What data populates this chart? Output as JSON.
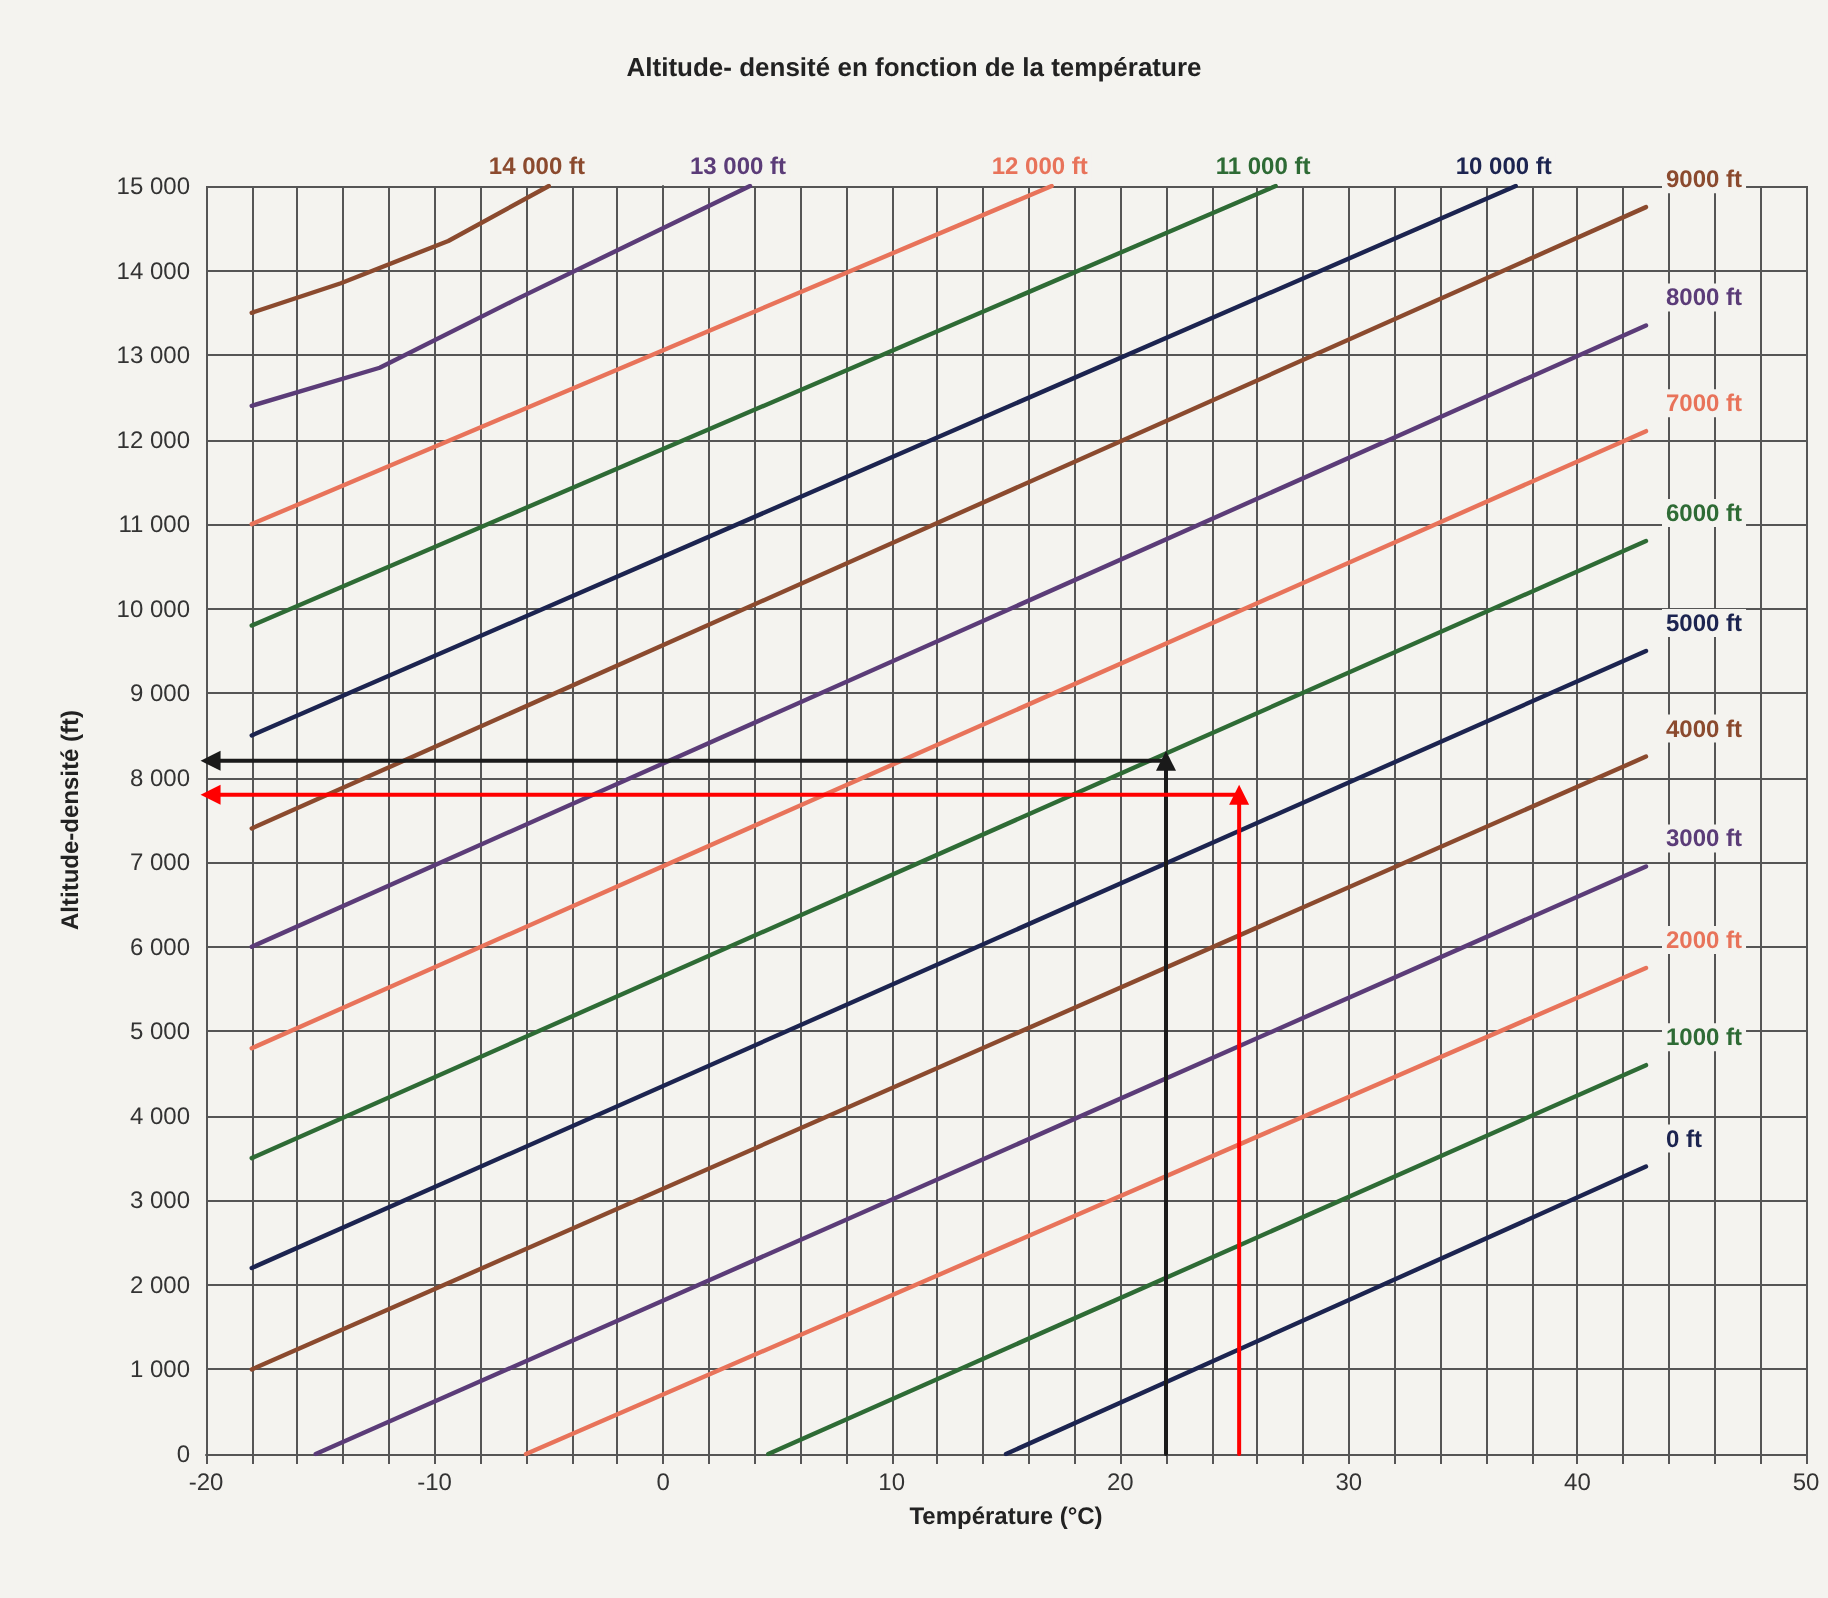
{
  "chart_data": {
    "type": "line",
    "title": "Altitude- densité en fonction de la température",
    "xlabel": "Température (°C)",
    "ylabel": "Altitude-densité (ft)",
    "xlim": [
      -20,
      50
    ],
    "xticks": [
      -20,
      {
        "value": -18,
        "label": null
      },
      {
        "value": -16,
        "label": null
      },
      {
        "value": -14,
        "label": null
      },
      {
        "value": -12,
        "label": null
      },
      -10,
      {
        "value": -8,
        "label": null
      },
      {
        "value": -6,
        "label": null
      },
      {
        "value": -4,
        "label": null
      },
      {
        "value": -2,
        "label": null
      },
      0,
      {
        "value": 2,
        "label": null
      },
      {
        "value": 4,
        "label": null
      },
      {
        "value": 6,
        "label": null
      },
      {
        "value": 8,
        "label": null
      },
      10,
      {
        "value": 12,
        "label": null
      },
      {
        "value": 14,
        "label": null
      },
      {
        "value": 16,
        "label": null
      },
      {
        "value": 18,
        "label": null
      },
      20,
      {
        "value": 22,
        "label": null
      },
      {
        "value": 24,
        "label": null
      },
      {
        "value": 26,
        "label": null
      },
      {
        "value": 28,
        "label": null
      },
      30,
      {
        "value": 32,
        "label": null
      },
      {
        "value": 34,
        "label": null
      },
      {
        "value": 36,
        "label": null
      },
      {
        "value": 38,
        "label": null
      },
      40,
      {
        "value": 42,
        "label": null
      },
      {
        "value": 44,
        "label": null
      },
      {
        "value": 46,
        "label": null
      },
      {
        "value": 48,
        "label": null
      },
      50
    ],
    "ylim": [
      0,
      15000
    ],
    "yticks": [
      0,
      {
        "value": 1000,
        "label": "1 000"
      },
      {
        "value": 2000,
        "label": "2 000"
      },
      {
        "value": 3000,
        "label": "3 000"
      },
      {
        "value": 4000,
        "label": "4 000"
      },
      {
        "value": 5000,
        "label": "5 000"
      },
      {
        "value": 6000,
        "label": "6 000"
      },
      {
        "value": 7000,
        "label": "7 000"
      },
      {
        "value": 8000,
        "label": "8 000"
      },
      {
        "value": 9000,
        "label": "9 000"
      },
      {
        "value": 10000,
        "label": "10 000"
      },
      {
        "value": 11000,
        "label": "11 000"
      },
      {
        "value": 12000,
        "label": "12 000"
      },
      {
        "value": 13000,
        "label": "13 000"
      },
      {
        "value": 14000,
        "label": "14 000"
      },
      {
        "value": 15000,
        "label": "15 000"
      }
    ],
    "grid": true,
    "legend": false,
    "marker": "none",
    "line_style": "solid",
    "series": [
      {
        "name": "0 ft",
        "color": "#1c2450",
        "x": [
          15,
          43
        ],
        "values": [
          0,
          3400
        ]
      },
      {
        "name": "1000 ft",
        "color": "#2e6b35",
        "x": [
          4.6,
          43
        ],
        "values": [
          0,
          4600
        ]
      },
      {
        "name": "2000 ft",
        "color": "#e8735a",
        "x": [
          -6,
          43
        ],
        "values": [
          0,
          5750
        ]
      },
      {
        "name": "3000 ft",
        "color": "#5b3c78",
        "x": [
          -15.2,
          43
        ],
        "values": [
          0,
          6950
        ]
      },
      {
        "name": "4000 ft",
        "color": "#8b4a2e",
        "x": [
          -18,
          43
        ],
        "values": [
          1000,
          8250
        ]
      },
      {
        "name": "5000 ft",
        "color": "#1c2450",
        "x": [
          -18,
          43
        ],
        "values": [
          2200,
          9500
        ]
      },
      {
        "name": "6000 ft",
        "color": "#2e6b35",
        "x": [
          -18,
          43
        ],
        "values": [
          3500,
          10800
        ]
      },
      {
        "name": "7000 ft",
        "color": "#e8735a",
        "x": [
          -18,
          43
        ],
        "values": [
          4800,
          12100
        ]
      },
      {
        "name": "8000 ft",
        "color": "#5b3c78",
        "x": [
          -18,
          43
        ],
        "values": [
          6000,
          13350
        ]
      },
      {
        "name": "9000 ft",
        "color": "#8b4a2e",
        "x": [
          -18,
          43
        ],
        "values": [
          7400,
          14750
        ]
      },
      {
        "name": "10 000 ft",
        "color": "#1c2450",
        "x": [
          -18,
          37.3
        ],
        "values": [
          8500,
          15000
        ]
      },
      {
        "name": "11 000 ft",
        "color": "#2e6b35",
        "x": [
          -18,
          26.8
        ],
        "values": [
          9800,
          15000
        ]
      },
      {
        "name": "12 000 ft",
        "color": "#e8735a",
        "x": [
          -18,
          17
        ],
        "values": [
          11000,
          15000
        ]
      },
      {
        "name": "13 000 ft",
        "color": "#5b3c78",
        "x": [
          -18,
          -12.4,
          -6.5,
          3.8
        ],
        "values": [
          12400,
          12850,
          13650,
          15000
        ]
      },
      {
        "name": "14 000 ft",
        "color": "#8b4a2e",
        "x": [
          -18,
          -14.1,
          -9.4,
          -5
        ],
        "values": [
          13500,
          13850,
          14350,
          15000
        ]
      },
      {
        "color": "#1a1a1a",
        "x": [
          22,
          22,
          -19.8
        ],
        "values": [
          0,
          8200,
          8200
        ],
        "marker": "triangle"
      },
      {
        "color": "#ff0000",
        "x": [
          25.2,
          25.2,
          -19.8
        ],
        "values": [
          0,
          7800,
          7800
        ],
        "marker": "triangle"
      }
    ]
  }
}
